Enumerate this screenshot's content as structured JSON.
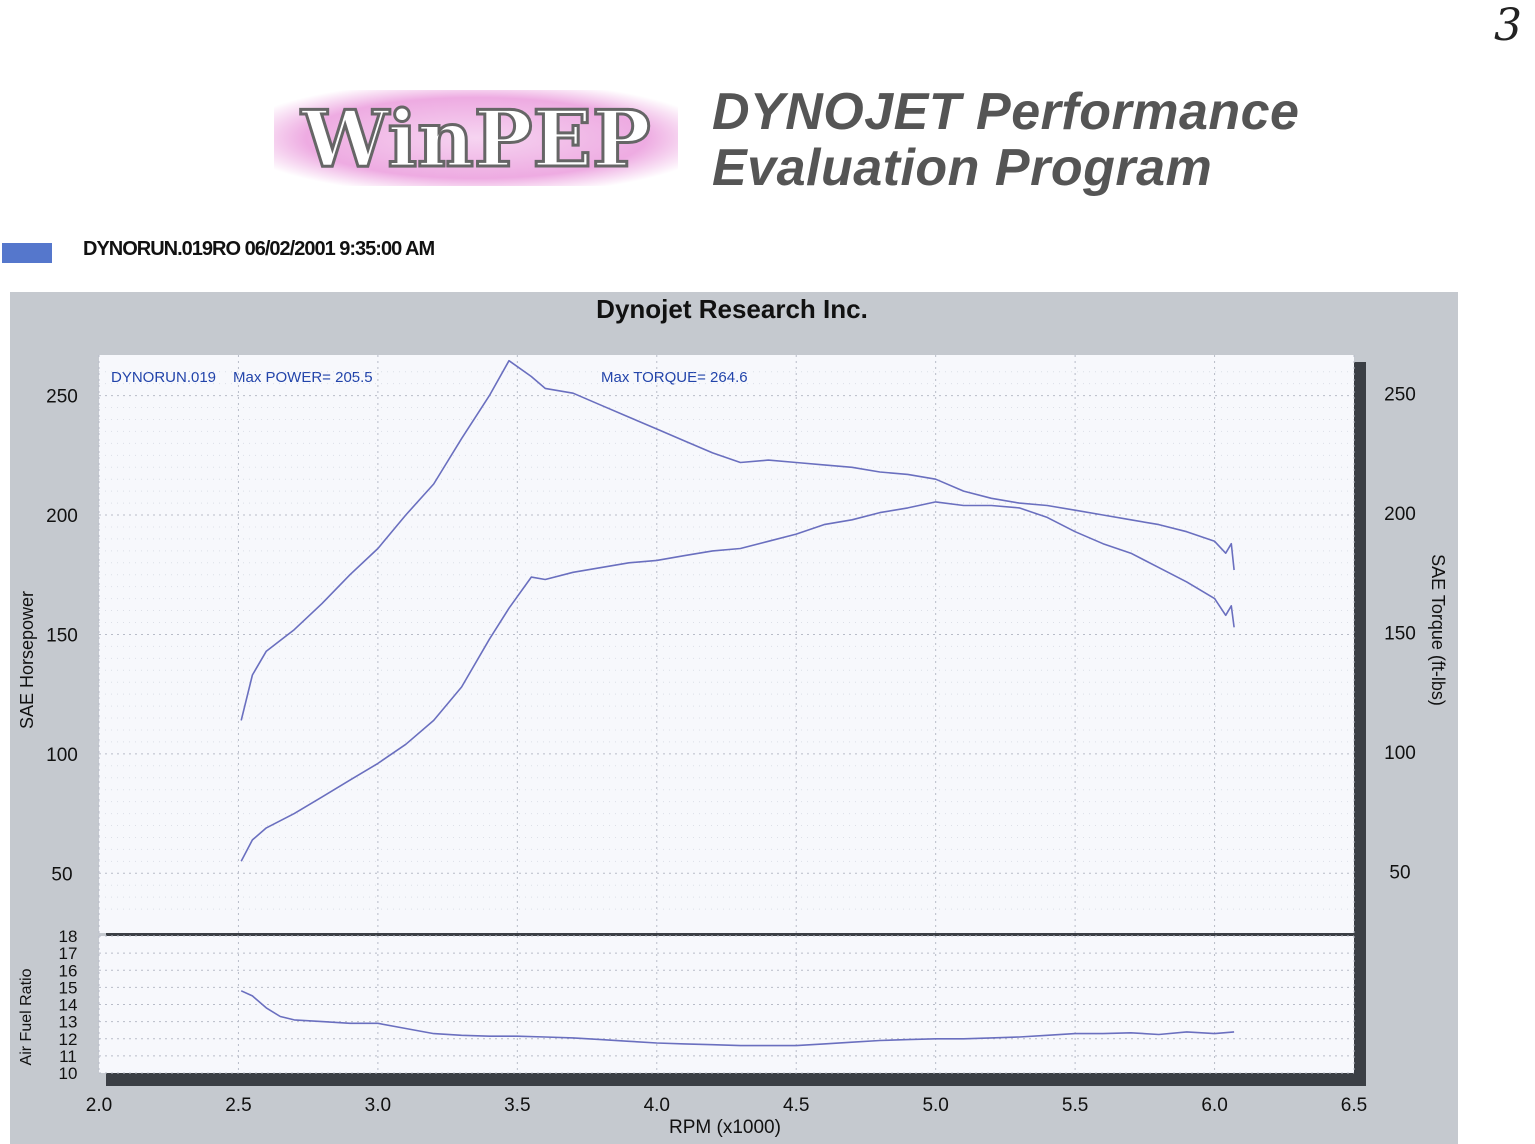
{
  "page_number": "3",
  "header": {
    "logo_text": "WinPEP",
    "title_line1": "DYNOJET Performance",
    "title_line2": "Evaluation Program"
  },
  "run": {
    "legend_color": "#5577cc",
    "label": "DYNORUN.019RO  06/02/2001 9:35:00 AM"
  },
  "chart_data": {
    "type": "line",
    "title": "Dynojet  Research  Inc.",
    "annotations": {
      "run_name": "DYNORUN.019",
      "max_power": "Max POWER= 205.5",
      "max_torque": "Max TORQUE= 264.6"
    },
    "xlabel": "RPM (x1000)",
    "xlim": [
      2.0,
      6.5
    ],
    "x_ticks": [
      "2.0",
      "2.5",
      "3.0",
      "3.5",
      "4.0",
      "4.5",
      "5.0",
      "5.5",
      "6.0",
      "6.5"
    ],
    "grid": true,
    "line_color": "#6a6fbf",
    "main_panel": {
      "ylabel_left": "SAE Horsepower",
      "ylabel_right": "SAE Torque (ft-lbs)",
      "ylim": [
        25,
        267
      ],
      "y_ticks": [
        "50",
        "100",
        "150",
        "200",
        "250"
      ],
      "series": [
        {
          "axis": "right",
          "x": [
            2.51,
            2.55,
            2.6,
            2.7,
            2.8,
            2.9,
            3.0,
            3.1,
            3.2,
            3.3,
            3.4,
            3.47,
            3.55,
            3.6,
            3.7,
            3.8,
            3.9,
            4.0,
            4.1,
            4.2,
            4.3,
            4.4,
            4.5,
            4.6,
            4.7,
            4.8,
            4.9,
            5.0,
            5.1,
            5.2,
            5.3,
            5.4,
            5.5,
            5.6,
            5.7,
            5.8,
            5.9,
            6.0,
            6.04,
            6.06,
            6.07
          ],
          "values": [
            114,
            133,
            143,
            152,
            163,
            175,
            186,
            200,
            213,
            232,
            250,
            264.6,
            258,
            253,
            251,
            246,
            241,
            236,
            231,
            226,
            222,
            223,
            222,
            221,
            220,
            218,
            217,
            215,
            210,
            207,
            205,
            204,
            202,
            200,
            198,
            196,
            193,
            189,
            184,
            188,
            177
          ]
        },
        {
          "axis": "left",
          "x": [
            2.51,
            2.55,
            2.6,
            2.7,
            2.8,
            2.9,
            3.0,
            3.1,
            3.2,
            3.3,
            3.4,
            3.47,
            3.55,
            3.6,
            3.7,
            3.8,
            3.9,
            4.0,
            4.1,
            4.2,
            4.3,
            4.4,
            4.5,
            4.6,
            4.7,
            4.8,
            4.9,
            5.0,
            5.1,
            5.2,
            5.3,
            5.4,
            5.5,
            5.6,
            5.7,
            5.8,
            5.9,
            6.0,
            6.04,
            6.06,
            6.07
          ],
          "values": [
            55,
            64,
            69,
            75,
            82,
            89,
            96,
            104,
            114,
            128,
            148,
            161,
            174,
            173,
            176,
            178,
            180,
            181,
            183,
            185,
            186,
            189,
            192,
            196,
            198,
            201,
            203,
            205.5,
            204,
            204,
            203,
            199,
            193,
            188,
            184,
            178,
            172,
            165,
            158,
            162,
            153
          ]
        }
      ]
    },
    "afr_panel": {
      "ylabel": "Air Fuel Ratio",
      "ylim": [
        10,
        18
      ],
      "y_ticks": [
        "10",
        "11",
        "12",
        "13",
        "14",
        "15",
        "16",
        "17",
        "18"
      ],
      "x": [
        2.51,
        2.55,
        2.6,
        2.65,
        2.7,
        2.8,
        2.9,
        3.0,
        3.1,
        3.2,
        3.3,
        3.4,
        3.5,
        3.6,
        3.7,
        3.8,
        3.9,
        4.0,
        4.1,
        4.2,
        4.3,
        4.4,
        4.5,
        4.6,
        4.7,
        4.8,
        4.9,
        5.0,
        5.1,
        5.2,
        5.3,
        5.4,
        5.5,
        5.6,
        5.7,
        5.8,
        5.9,
        6.0,
        6.07
      ],
      "values": [
        14.8,
        14.5,
        13.8,
        13.3,
        13.1,
        13.0,
        12.9,
        12.9,
        12.6,
        12.3,
        12.2,
        12.15,
        12.15,
        12.1,
        12.05,
        11.95,
        11.85,
        11.75,
        11.7,
        11.65,
        11.6,
        11.6,
        11.6,
        11.7,
        11.8,
        11.9,
        11.95,
        12.0,
        12.0,
        12.05,
        12.1,
        12.2,
        12.3,
        12.3,
        12.35,
        12.25,
        12.4,
        12.3,
        12.4
      ]
    }
  }
}
